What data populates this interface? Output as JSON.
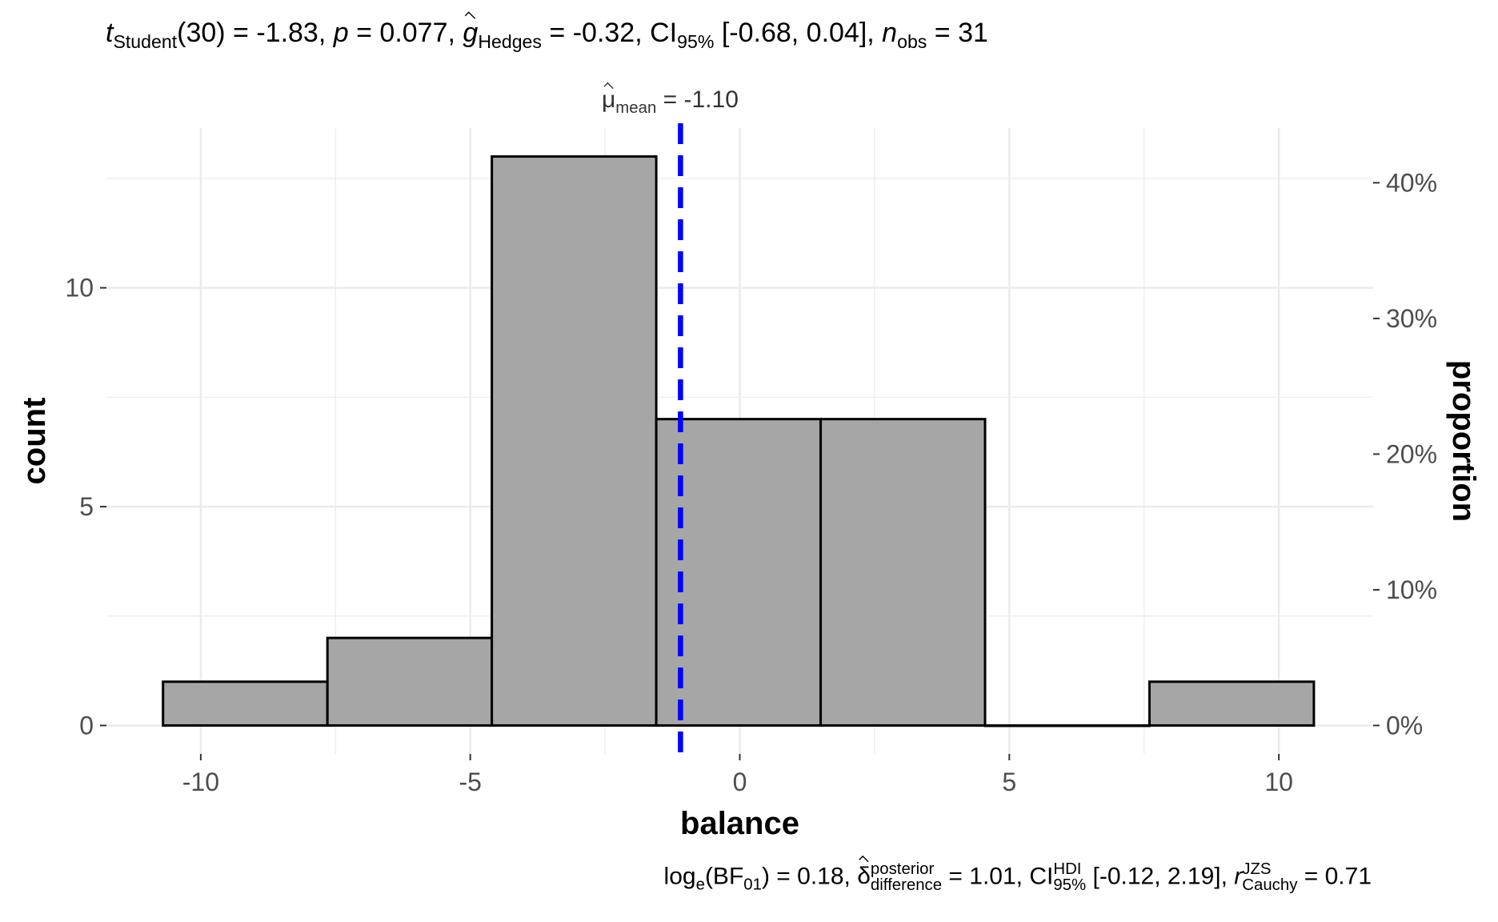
{
  "subtitle": {
    "t_symbol": "t",
    "t_sub": "Student",
    "t_value": "(30) = -1.83, ",
    "p_symbol": "p",
    "p_value": " = 0.077, ",
    "g_symbol": "g",
    "g_sub": "Hedges",
    "g_value": " = -0.32, CI",
    "ci_sub": "95%",
    "ci_value": " [-0.68, 0.04], ",
    "n_symbol": "n",
    "n_sub": "obs",
    "n_value": " = 31"
  },
  "caption": {
    "log_prefix": "log",
    "log_sub": "e",
    "bf_open": "(BF",
    "bf_sub": "01",
    "bf_value": ") = 0.18, ",
    "delta_symbol": "δ",
    "delta_sup": "posterior",
    "delta_sub": "difference",
    "delta_value": " = 1.01, CI",
    "ci_sup": "HDI",
    "ci_sub": "95%",
    "ci_value": " [-0.12, 2.19], ",
    "r_symbol": "r",
    "r_sup": "JZS",
    "r_sub": "Cauchy",
    "r_value": " = 0.71"
  },
  "mean_label": {
    "symbol": "μ",
    "sub": "mean",
    "value": " = -1.10"
  },
  "chart_data": {
    "type": "histogram",
    "xlabel": "balance",
    "ylabel": "count",
    "y2label": "proportion",
    "bins": [
      {
        "x0": -10.7,
        "x1": -7.65,
        "count": 1
      },
      {
        "x0": -7.65,
        "x1": -4.6,
        "count": 2
      },
      {
        "x0": -4.6,
        "x1": -1.55,
        "count": 13
      },
      {
        "x0": -1.55,
        "x1": 1.5,
        "count": 7
      },
      {
        "x0": 1.5,
        "x1": 4.55,
        "count": 7
      },
      {
        "x0": 4.55,
        "x1": 7.6,
        "count": 0
      },
      {
        "x0": 7.6,
        "x1": 10.65,
        "count": 1
      }
    ],
    "xlim": [
      -11.75,
      11.75
    ],
    "ylim": [
      -0.65,
      13.65
    ],
    "xticks": [
      -10,
      -5,
      0,
      5,
      10
    ],
    "xtick_labels": [
      "-10",
      "-5",
      "0",
      "5",
      "10"
    ],
    "yticks": [
      0,
      5,
      10
    ],
    "ytick_labels": [
      "0",
      "5",
      "10"
    ],
    "y2ticks": [
      0,
      0.1,
      0.2,
      0.3,
      0.4
    ],
    "y2tick_labels": [
      "0%",
      "10%",
      "20%",
      "30%",
      "40%"
    ],
    "n": 31,
    "mean_line": -1.1,
    "colors": {
      "bar_fill": "#a6a6a6",
      "bar_stroke": "#000000",
      "mean_line": "#0000ff",
      "grid": "#ebebeb",
      "tick_text": "#4d4d4d"
    }
  }
}
